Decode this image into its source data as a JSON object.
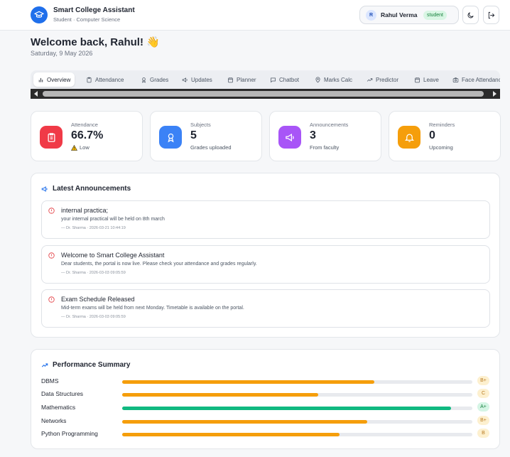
{
  "header": {
    "app_title": "Smart College Assistant",
    "app_subtitle": "Student · Computer Science",
    "user_initial": "R",
    "user_name": "Rahul Verma",
    "user_role": "student"
  },
  "greeting": {
    "title": "Welcome back, Rahul! 👋",
    "date": "Saturday, 9 May 2026"
  },
  "tabs": [
    {
      "label": "Overview",
      "icon": "bar-chart-icon",
      "active": true
    },
    {
      "label": "Attendance",
      "icon": "clipboard-icon",
      "active": false
    },
    {
      "label": "Grades",
      "icon": "award-icon",
      "active": false
    },
    {
      "label": "Updates",
      "icon": "megaphone-icon",
      "active": false
    },
    {
      "label": "Planner",
      "icon": "calendar-icon",
      "active": false
    },
    {
      "label": "Chatbot",
      "icon": "chat-icon",
      "active": false
    },
    {
      "label": "Marks Calc",
      "icon": "map-pin-icon",
      "active": false
    },
    {
      "label": "Predictor",
      "icon": "trend-icon",
      "active": false
    },
    {
      "label": "Leave",
      "icon": "calendar-icon",
      "active": false
    },
    {
      "label": "Face Attendance",
      "icon": "camera-icon",
      "active": false
    }
  ],
  "stats": [
    {
      "label": "Attendance",
      "value": "66.7%",
      "note": "Low",
      "note_icon": "warning-icon",
      "icon": "clipboard-icon",
      "color": "#f03a47"
    },
    {
      "label": "Subjects",
      "value": "5",
      "note": "Grades uploaded",
      "icon": "award-icon",
      "color": "#3b82f6"
    },
    {
      "label": "Announcements",
      "value": "3",
      "note": "From faculty",
      "icon": "megaphone-icon",
      "color": "#a855f7"
    },
    {
      "label": "Reminders",
      "value": "0",
      "note": "Upcoming",
      "icon": "bell-icon",
      "color": "#f59e0b"
    }
  ],
  "announcements": {
    "title": "Latest Announcements",
    "items": [
      {
        "title": "internal practica;",
        "body": "your internal practical will be held on 8th march",
        "meta": "— Dr. Sharma · 2026-03-21 10:44:19"
      },
      {
        "title": "Welcome to Smart College Assistant",
        "body": "Dear students, the portal is now live. Please check your attendance and grades regularly.",
        "meta": "— Dr. Sharma · 2026-03-03 09:05:59"
      },
      {
        "title": "Exam Schedule Released",
        "body": "Mid-term exams will be held from next Monday. Timetable is available on the portal.",
        "meta": "— Dr. Sharma · 2026-03-03 09:05:59"
      }
    ]
  },
  "performance": {
    "title": "Performance Summary",
    "items": [
      {
        "subject": "DBMS",
        "grade": "B+",
        "fraction": 0.72,
        "color": "#f59e0b"
      },
      {
        "subject": "Data Structures",
        "grade": "C",
        "fraction": 0.56,
        "color": "#f59e0b"
      },
      {
        "subject": "Mathematics",
        "grade": "A+",
        "fraction": 0.94,
        "color": "#10b981"
      },
      {
        "subject": "Networks",
        "grade": "B+",
        "fraction": 0.7,
        "color": "#f59e0b"
      },
      {
        "subject": "Python Programming",
        "grade": "B",
        "fraction": 0.62,
        "color": "#f59e0b"
      }
    ]
  },
  "colors": {
    "primary": "#1f6feb",
    "grade_amber_bg": "#fdf0cf",
    "grade_amber_text": "#b7791f",
    "grade_green_bg": "#d5f5e5",
    "grade_green_text": "#15803d"
  }
}
